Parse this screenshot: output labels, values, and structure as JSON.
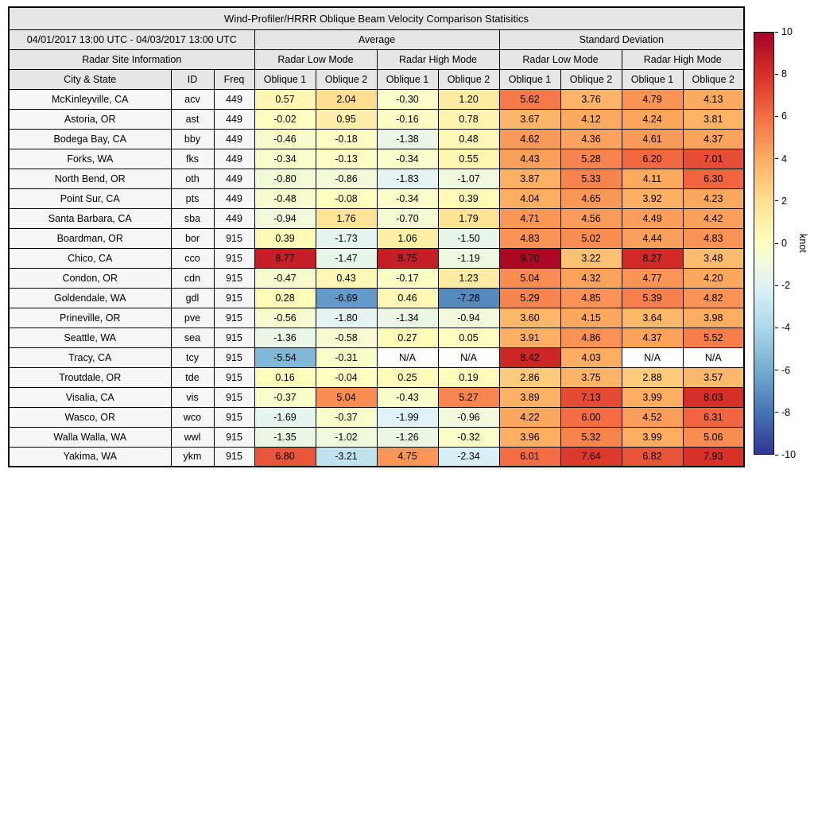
{
  "chart_data": {
    "type": "heatmap",
    "title": "Wind-Profiler/HRRR Oblique Beam Velocity Comparison Statisitics",
    "date_range": "04/01/2017 13:00 UTC - 04/03/2017 13:00 UTC",
    "group_headers": [
      "Average",
      "Standard Deviation"
    ],
    "site_info_label": "Radar Site Information",
    "mode_headers": [
      "Radar Low Mode",
      "Radar High Mode",
      "Radar Low Mode",
      "Radar High Mode"
    ],
    "column_headers": [
      "City & State",
      "ID",
      "Freq",
      "Oblique 1",
      "Oblique 2",
      "Oblique 1",
      "Oblique 2",
      "Oblique 1",
      "Oblique 2",
      "Oblique 1",
      "Oblique 2"
    ],
    "rows": [
      {
        "city": "McKinleyville, CA",
        "id": "acv",
        "freq": "449",
        "values": [
          "0.57",
          "2.04",
          "-0.30",
          "1.20",
          "5.62",
          "3.76",
          "4.79",
          "4.13"
        ]
      },
      {
        "city": "Astoria, OR",
        "id": "ast",
        "freq": "449",
        "values": [
          "-0.02",
          "0.95",
          "-0.16",
          "0.78",
          "3.67",
          "4.12",
          "4.24",
          "3.81"
        ]
      },
      {
        "city": "Bodega Bay, CA",
        "id": "bby",
        "freq": "449",
        "values": [
          "-0.46",
          "-0.18",
          "-1.38",
          "0.48",
          "4.62",
          "4.36",
          "4.61",
          "4.37"
        ]
      },
      {
        "city": "Forks, WA",
        "id": "fks",
        "freq": "449",
        "values": [
          "-0.34",
          "-0.13",
          "-0.34",
          "0.55",
          "4.43",
          "5.28",
          "6.20",
          "7.01"
        ]
      },
      {
        "city": "North Bend, OR",
        "id": "oth",
        "freq": "449",
        "values": [
          "-0.80",
          "-0.86",
          "-1.83",
          "-1.07",
          "3.87",
          "5.33",
          "4.11",
          "6.30"
        ]
      },
      {
        "city": "Point Sur, CA",
        "id": "pts",
        "freq": "449",
        "values": [
          "-0.48",
          "-0.08",
          "-0.34",
          "0.39",
          "4.04",
          "4.65",
          "3.92",
          "4.23"
        ]
      },
      {
        "city": "Santa Barbara, CA",
        "id": "sba",
        "freq": "449",
        "values": [
          "-0.94",
          "1.76",
          "-0.70",
          "1.79",
          "4.71",
          "4.56",
          "4.49",
          "4.42"
        ]
      },
      {
        "city": "Boardman, OR",
        "id": "bor",
        "freq": "915",
        "values": [
          "0.39",
          "-1.73",
          "1.06",
          "-1.50",
          "4.83",
          "5.02",
          "4.44",
          "4.83"
        ]
      },
      {
        "city": "Chico, CA",
        "id": "cco",
        "freq": "915",
        "values": [
          "8.77",
          "-1.47",
          "8.75",
          "-1.19",
          "9.70",
          "3.22",
          "8.27",
          "3.48"
        ]
      },
      {
        "city": "Condon, OR",
        "id": "cdn",
        "freq": "915",
        "values": [
          "-0.47",
          "0.43",
          "-0.17",
          "1.23",
          "5.04",
          "4.32",
          "4.77",
          "4.20"
        ]
      },
      {
        "city": "Goldendale, WA",
        "id": "gdl",
        "freq": "915",
        "values": [
          "0.28",
          "-6.69",
          "0.46",
          "-7.28",
          "5.29",
          "4.85",
          "5.39",
          "4.82"
        ]
      },
      {
        "city": "Prineville, OR",
        "id": "pve",
        "freq": "915",
        "values": [
          "-0.56",
          "-1.80",
          "-1.34",
          "-0.94",
          "3.60",
          "4.15",
          "3.64",
          "3.98"
        ]
      },
      {
        "city": "Seattle, WA",
        "id": "sea",
        "freq": "915",
        "values": [
          "-1.36",
          "-0.58",
          "0.27",
          "0.05",
          "3.91",
          "4.86",
          "4.37",
          "5.52"
        ]
      },
      {
        "city": "Tracy, CA",
        "id": "tcy",
        "freq": "915",
        "values": [
          "-5.54",
          "-0.31",
          "N/A",
          "N/A",
          "8.42",
          "4.03",
          "N/A",
          "N/A"
        ]
      },
      {
        "city": "Troutdale, OR",
        "id": "tde",
        "freq": "915",
        "values": [
          "0.16",
          "-0.04",
          "0.25",
          "0.19",
          "2.86",
          "3.75",
          "2.88",
          "3.57"
        ]
      },
      {
        "city": "Visalia, CA",
        "id": "vis",
        "freq": "915",
        "values": [
          "-0.37",
          "5.04",
          "-0.43",
          "5.27",
          "3.89",
          "7.13",
          "3.99",
          "8.03"
        ]
      },
      {
        "city": "Wasco, OR",
        "id": "wco",
        "freq": "915",
        "values": [
          "-1.69",
          "-0.37",
          "-1.99",
          "-0.96",
          "4.22",
          "6.00",
          "4.52",
          "6.31"
        ]
      },
      {
        "city": "Walla Walla, WA",
        "id": "wwl",
        "freq": "915",
        "values": [
          "-1.35",
          "-1.02",
          "-1.26",
          "-0.32",
          "3.96",
          "5.32",
          "3.99",
          "5.06"
        ]
      },
      {
        "city": "Yakima, WA",
        "id": "ykm",
        "freq": "915",
        "values": [
          "6.80",
          "-3.21",
          "4.75",
          "-2.34",
          "6.01",
          "7.64",
          "6.82",
          "7.93"
        ]
      }
    ],
    "na_color": "#ffffff",
    "cell_text_color": "#000000",
    "colorbar": {
      "label": "knot",
      "min": -10,
      "max": 10,
      "ticks": [
        10,
        8,
        6,
        4,
        2,
        0,
        -2,
        -4,
        -6,
        -8,
        -10
      ],
      "colormap": [
        {
          "t": 0.0,
          "color": "#313695"
        },
        {
          "t": 0.1,
          "color": "#4575b4"
        },
        {
          "t": 0.2,
          "color": "#74add1"
        },
        {
          "t": 0.3,
          "color": "#abd9e9"
        },
        {
          "t": 0.4,
          "color": "#e0f3f8"
        },
        {
          "t": 0.5,
          "color": "#ffffbf"
        },
        {
          "t": 0.6,
          "color": "#fee090"
        },
        {
          "t": 0.7,
          "color": "#fdae61"
        },
        {
          "t": 0.8,
          "color": "#f46d43"
        },
        {
          "t": 0.9,
          "color": "#d73027"
        },
        {
          "t": 1.0,
          "color": "#a50026"
        }
      ]
    }
  }
}
